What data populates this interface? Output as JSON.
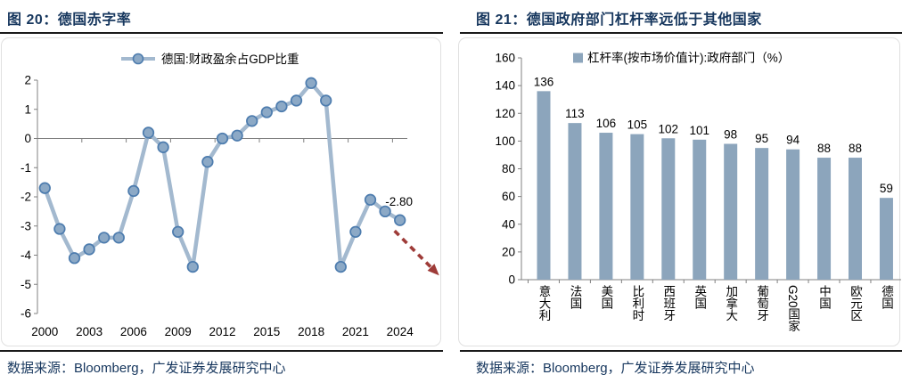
{
  "colors": {
    "title_navy": "#17375E",
    "line": "#A3B9CF",
    "marker_fill": "#8CA9C6",
    "marker_stroke": "#4D7CAE",
    "bar": "#8CA5BC",
    "arrow_red": "#9E3B38",
    "axis_gray": "#808080",
    "rule_black": "#1A1A1A"
  },
  "chart_data": [
    {
      "type": "line",
      "title": "图 20：德国赤字率",
      "legend": "德国:财政盈余占GDP比重",
      "legend_position": "top-center",
      "grid": false,
      "x": [
        2000,
        2001,
        2002,
        2003,
        2004,
        2005,
        2006,
        2007,
        2008,
        2009,
        2010,
        2011,
        2012,
        2013,
        2014,
        2015,
        2016,
        2017,
        2018,
        2019,
        2020,
        2021,
        2022,
        2023,
        2024
      ],
      "values": [
        -1.7,
        -3.1,
        -4.1,
        -3.8,
        -3.4,
        -3.4,
        -1.8,
        0.2,
        -0.3,
        -3.2,
        -4.4,
        -0.8,
        0.0,
        0.1,
        0.6,
        0.9,
        1.1,
        1.3,
        1.9,
        1.3,
        -4.4,
        -3.2,
        -2.1,
        -2.5,
        -2.8
      ],
      "x_tick_labels": [
        "2000",
        "2003",
        "2006",
        "2009",
        "2012",
        "2015",
        "2018",
        "2021",
        "2024"
      ],
      "y_ticks": [
        2,
        1,
        0,
        -1,
        -2,
        -3,
        -4,
        -5,
        -6
      ],
      "ylim": [
        -6,
        2
      ],
      "xlabel": "",
      "ylabel": "",
      "annotation": {
        "text": "-2.80",
        "attached_to": "last-point"
      },
      "trend_arrow": {
        "style": "dashed",
        "direction": "down-right"
      },
      "source": "数据来源：Bloomberg，广发证券发展研究中心"
    },
    {
      "type": "bar",
      "title": "图 21：德国政府部门杠杆率远低于其他国家",
      "legend": "杠杆率(按市场价值计):政府部门（%）",
      "legend_position": "top-center",
      "grid": false,
      "categories": [
        "意大利",
        "法国",
        "美国",
        "比利时",
        "西班牙",
        "英国",
        "加拿大",
        "葡萄牙",
        "G20国家",
        "中国",
        "欧元区",
        "德国"
      ],
      "values": [
        136,
        113,
        106,
        105,
        102,
        101,
        98,
        95,
        94,
        88,
        88,
        59
      ],
      "y_ticks": [
        0,
        20,
        40,
        60,
        80,
        100,
        120,
        140,
        160
      ],
      "ylim": [
        0,
        160
      ],
      "xlabel": "",
      "ylabel": "",
      "source": "数据来源：Bloomberg，广发证券发展研究中心"
    }
  ]
}
